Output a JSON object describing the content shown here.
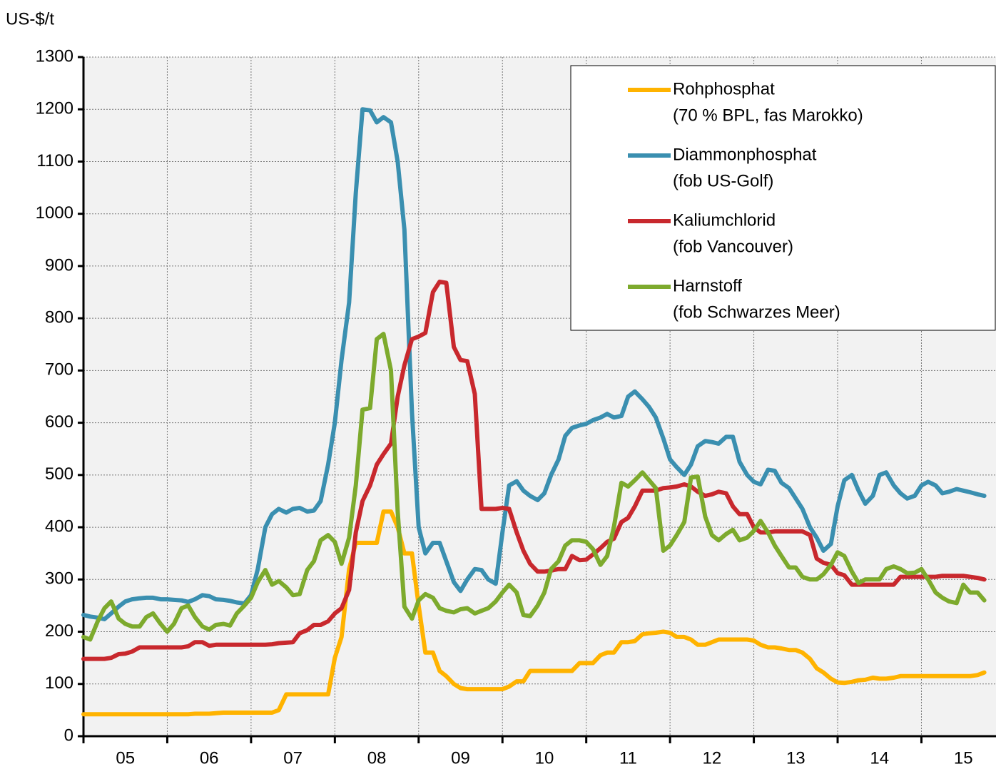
{
  "chart_data": {
    "type": "line",
    "ylabel": "US-$/t",
    "ylim": [
      0,
      1300
    ],
    "yticks": [
      0,
      100,
      200,
      300,
      400,
      500,
      600,
      700,
      800,
      900,
      1000,
      1100,
      1200,
      1300
    ],
    "xlim": [
      2005,
      2015.89
    ],
    "xticks": [
      {
        "value": 2005.5,
        "label": "05"
      },
      {
        "value": 2006.5,
        "label": "06"
      },
      {
        "value": 2007.5,
        "label": "07"
      },
      {
        "value": 2008.5,
        "label": "08"
      },
      {
        "value": 2009.5,
        "label": "09"
      },
      {
        "value": 2010.5,
        "label": "10"
      },
      {
        "value": 2011.5,
        "label": "11"
      },
      {
        "value": 2012.5,
        "label": "12"
      },
      {
        "value": 2013.5,
        "label": "13"
      },
      {
        "value": 2014.5,
        "label": "14"
      },
      {
        "value": 2015.5,
        "label": "15"
      }
    ],
    "xgrid": [
      2005,
      2006,
      2007,
      2008,
      2009,
      2010,
      2011,
      2012,
      2013,
      2014,
      2015
    ],
    "grid": true,
    "legend": "top-right",
    "x": [
      2005.0,
      2005.08,
      2005.17,
      2005.25,
      2005.33,
      2005.42,
      2005.5,
      2005.58,
      2005.67,
      2005.75,
      2005.83,
      2005.92,
      2006.0,
      2006.08,
      2006.17,
      2006.25,
      2006.33,
      2006.42,
      2006.5,
      2006.58,
      2006.67,
      2006.75,
      2006.83,
      2006.92,
      2007.0,
      2007.08,
      2007.17,
      2007.25,
      2007.33,
      2007.42,
      2007.5,
      2007.58,
      2007.67,
      2007.75,
      2007.83,
      2007.92,
      2008.0,
      2008.08,
      2008.17,
      2008.25,
      2008.33,
      2008.42,
      2008.5,
      2008.58,
      2008.67,
      2008.75,
      2008.83,
      2008.92,
      2009.0,
      2009.08,
      2009.17,
      2009.25,
      2009.33,
      2009.42,
      2009.5,
      2009.58,
      2009.67,
      2009.75,
      2009.83,
      2009.92,
      2010.0,
      2010.08,
      2010.17,
      2010.25,
      2010.33,
      2010.42,
      2010.5,
      2010.58,
      2010.67,
      2010.75,
      2010.83,
      2010.92,
      2011.0,
      2011.08,
      2011.17,
      2011.25,
      2011.33,
      2011.42,
      2011.5,
      2011.58,
      2011.67,
      2011.75,
      2011.83,
      2011.92,
      2012.0,
      2012.08,
      2012.17,
      2012.25,
      2012.33,
      2012.42,
      2012.5,
      2012.58,
      2012.67,
      2012.75,
      2012.83,
      2012.92,
      2013.0,
      2013.08,
      2013.17,
      2013.25,
      2013.33,
      2013.42,
      2013.5,
      2013.58,
      2013.67,
      2013.75,
      2013.83,
      2013.92,
      2014.0,
      2014.08,
      2014.17,
      2014.25,
      2014.33,
      2014.42,
      2014.5,
      2014.58,
      2014.67,
      2014.75,
      2014.83,
      2014.92,
      2015.0,
      2015.08,
      2015.17,
      2015.25,
      2015.33,
      2015.42,
      2015.5,
      2015.58,
      2015.67,
      2015.75
    ],
    "series": [
      {
        "name": "Rohphosphat",
        "detail": "(70 % BPL, fas Marokko)",
        "color": "#ffb300",
        "values": [
          42,
          42,
          42,
          42,
          42,
          42,
          42,
          42,
          42,
          42,
          42,
          42,
          42,
          42,
          42,
          42,
          43,
          43,
          43,
          44,
          45,
          45,
          45,
          45,
          45,
          45,
          45,
          45,
          50,
          80,
          80,
          80,
          80,
          80,
          80,
          80,
          150,
          190,
          320,
          370,
          370,
          370,
          370,
          430,
          430,
          400,
          350,
          350,
          250,
          160,
          160,
          125,
          115,
          100,
          92,
          90,
          90,
          90,
          90,
          90,
          90,
          95,
          105,
          105,
          125,
          125,
          125,
          125,
          125,
          125,
          125,
          140,
          140,
          140,
          155,
          160,
          160,
          180,
          180,
          182,
          195,
          197,
          198,
          200,
          198,
          190,
          190,
          185,
          175,
          175,
          180,
          185,
          185,
          185,
          185,
          185,
          183,
          175,
          170,
          170,
          168,
          165,
          165,
          160,
          148,
          130,
          122,
          110,
          103,
          102,
          104,
          107,
          108,
          112,
          110,
          110,
          112,
          115,
          115,
          115,
          115,
          115,
          115,
          115,
          115,
          115,
          115,
          115,
          117,
          122
        ]
      },
      {
        "name": "Diammonphosphat",
        "detail": "(fob US-Golf)",
        "color": "#3a8fb0",
        "values": [
          232,
          229,
          227,
          224,
          235,
          248,
          258,
          262,
          264,
          265,
          265,
          262,
          262,
          261,
          260,
          257,
          262,
          270,
          268,
          262,
          261,
          259,
          256,
          254,
          270,
          320,
          400,
          425,
          435,
          428,
          435,
          437,
          430,
          432,
          450,
          520,
          600,
          720,
          830,
          1040,
          1200,
          1198,
          1175,
          1185,
          1175,
          1100,
          970,
          620,
          400,
          350,
          370,
          370,
          335,
          295,
          278,
          300,
          320,
          318,
          300,
          292,
          390,
          480,
          488,
          470,
          460,
          452,
          465,
          500,
          530,
          575,
          590,
          595,
          598,
          605,
          610,
          617,
          610,
          613,
          650,
          660,
          645,
          630,
          610,
          570,
          530,
          515,
          500,
          520,
          555,
          565,
          563,
          560,
          573,
          573,
          525,
          500,
          487,
          482,
          510,
          508,
          485,
          475,
          455,
          435,
          400,
          380,
          355,
          368,
          440,
          490,
          500,
          470,
          445,
          460,
          500,
          505,
          480,
          465,
          455,
          460,
          480,
          487,
          480,
          465,
          468,
          473,
          470,
          467,
          463,
          460
        ]
      },
      {
        "name": "Kaliumchlorid",
        "detail": "(fob Vancouver)",
        "color": "#c8282d",
        "values": [
          148,
          148,
          148,
          148,
          150,
          157,
          158,
          162,
          170,
          170,
          170,
          170,
          170,
          170,
          170,
          172,
          180,
          180,
          173,
          175,
          175,
          175,
          175,
          175,
          175,
          175,
          175,
          176,
          178,
          179,
          180,
          197,
          203,
          213,
          213,
          220,
          235,
          245,
          280,
          390,
          450,
          480,
          520,
          540,
          560,
          650,
          710,
          760,
          765,
          772,
          850,
          870,
          868,
          745,
          720,
          718,
          655,
          435,
          435,
          435,
          437,
          435,
          390,
          355,
          330,
          315,
          315,
          317,
          320,
          320,
          345,
          337,
          338,
          348,
          360,
          372,
          378,
          410,
          418,
          440,
          470,
          470,
          470,
          475,
          476,
          478,
          482,
          478,
          468,
          460,
          463,
          468,
          465,
          440,
          425,
          425,
          400,
          390,
          390,
          392,
          392,
          392,
          392,
          392,
          385,
          340,
          332,
          328,
          312,
          308,
          290,
          290,
          290,
          290,
          290,
          290,
          290,
          305,
          305,
          305,
          305,
          305,
          305,
          307,
          307,
          307,
          307,
          305,
          303,
          300
        ]
      },
      {
        "name": "Harnstoff",
        "detail": "(fob Schwarzes Meer)",
        "color": "#7daa2d",
        "values": [
          190,
          185,
          220,
          245,
          258,
          225,
          215,
          210,
          210,
          228,
          235,
          215,
          200,
          215,
          245,
          250,
          228,
          210,
          204,
          213,
          215,
          212,
          235,
          250,
          265,
          295,
          318,
          290,
          297,
          285,
          270,
          272,
          318,
          335,
          375,
          385,
          372,
          330,
          380,
          480,
          625,
          628,
          760,
          770,
          700,
          430,
          248,
          225,
          260,
          272,
          265,
          245,
          240,
          237,
          243,
          245,
          235,
          240,
          245,
          258,
          275,
          290,
          275,
          232,
          230,
          250,
          275,
          320,
          335,
          365,
          375,
          375,
          372,
          358,
          328,
          345,
          400,
          485,
          478,
          490,
          505,
          490,
          475,
          355,
          365,
          385,
          410,
          495,
          497,
          420,
          385,
          375,
          387,
          395,
          375,
          380,
          393,
          412,
          390,
          365,
          345,
          323,
          323,
          305,
          300,
          300,
          310,
          328,
          352,
          345,
          315,
          293,
          300,
          300,
          300,
          320,
          325,
          320,
          312,
          313,
          320,
          300,
          275,
          265,
          258,
          255,
          290,
          275,
          275,
          260
        ]
      }
    ]
  }
}
